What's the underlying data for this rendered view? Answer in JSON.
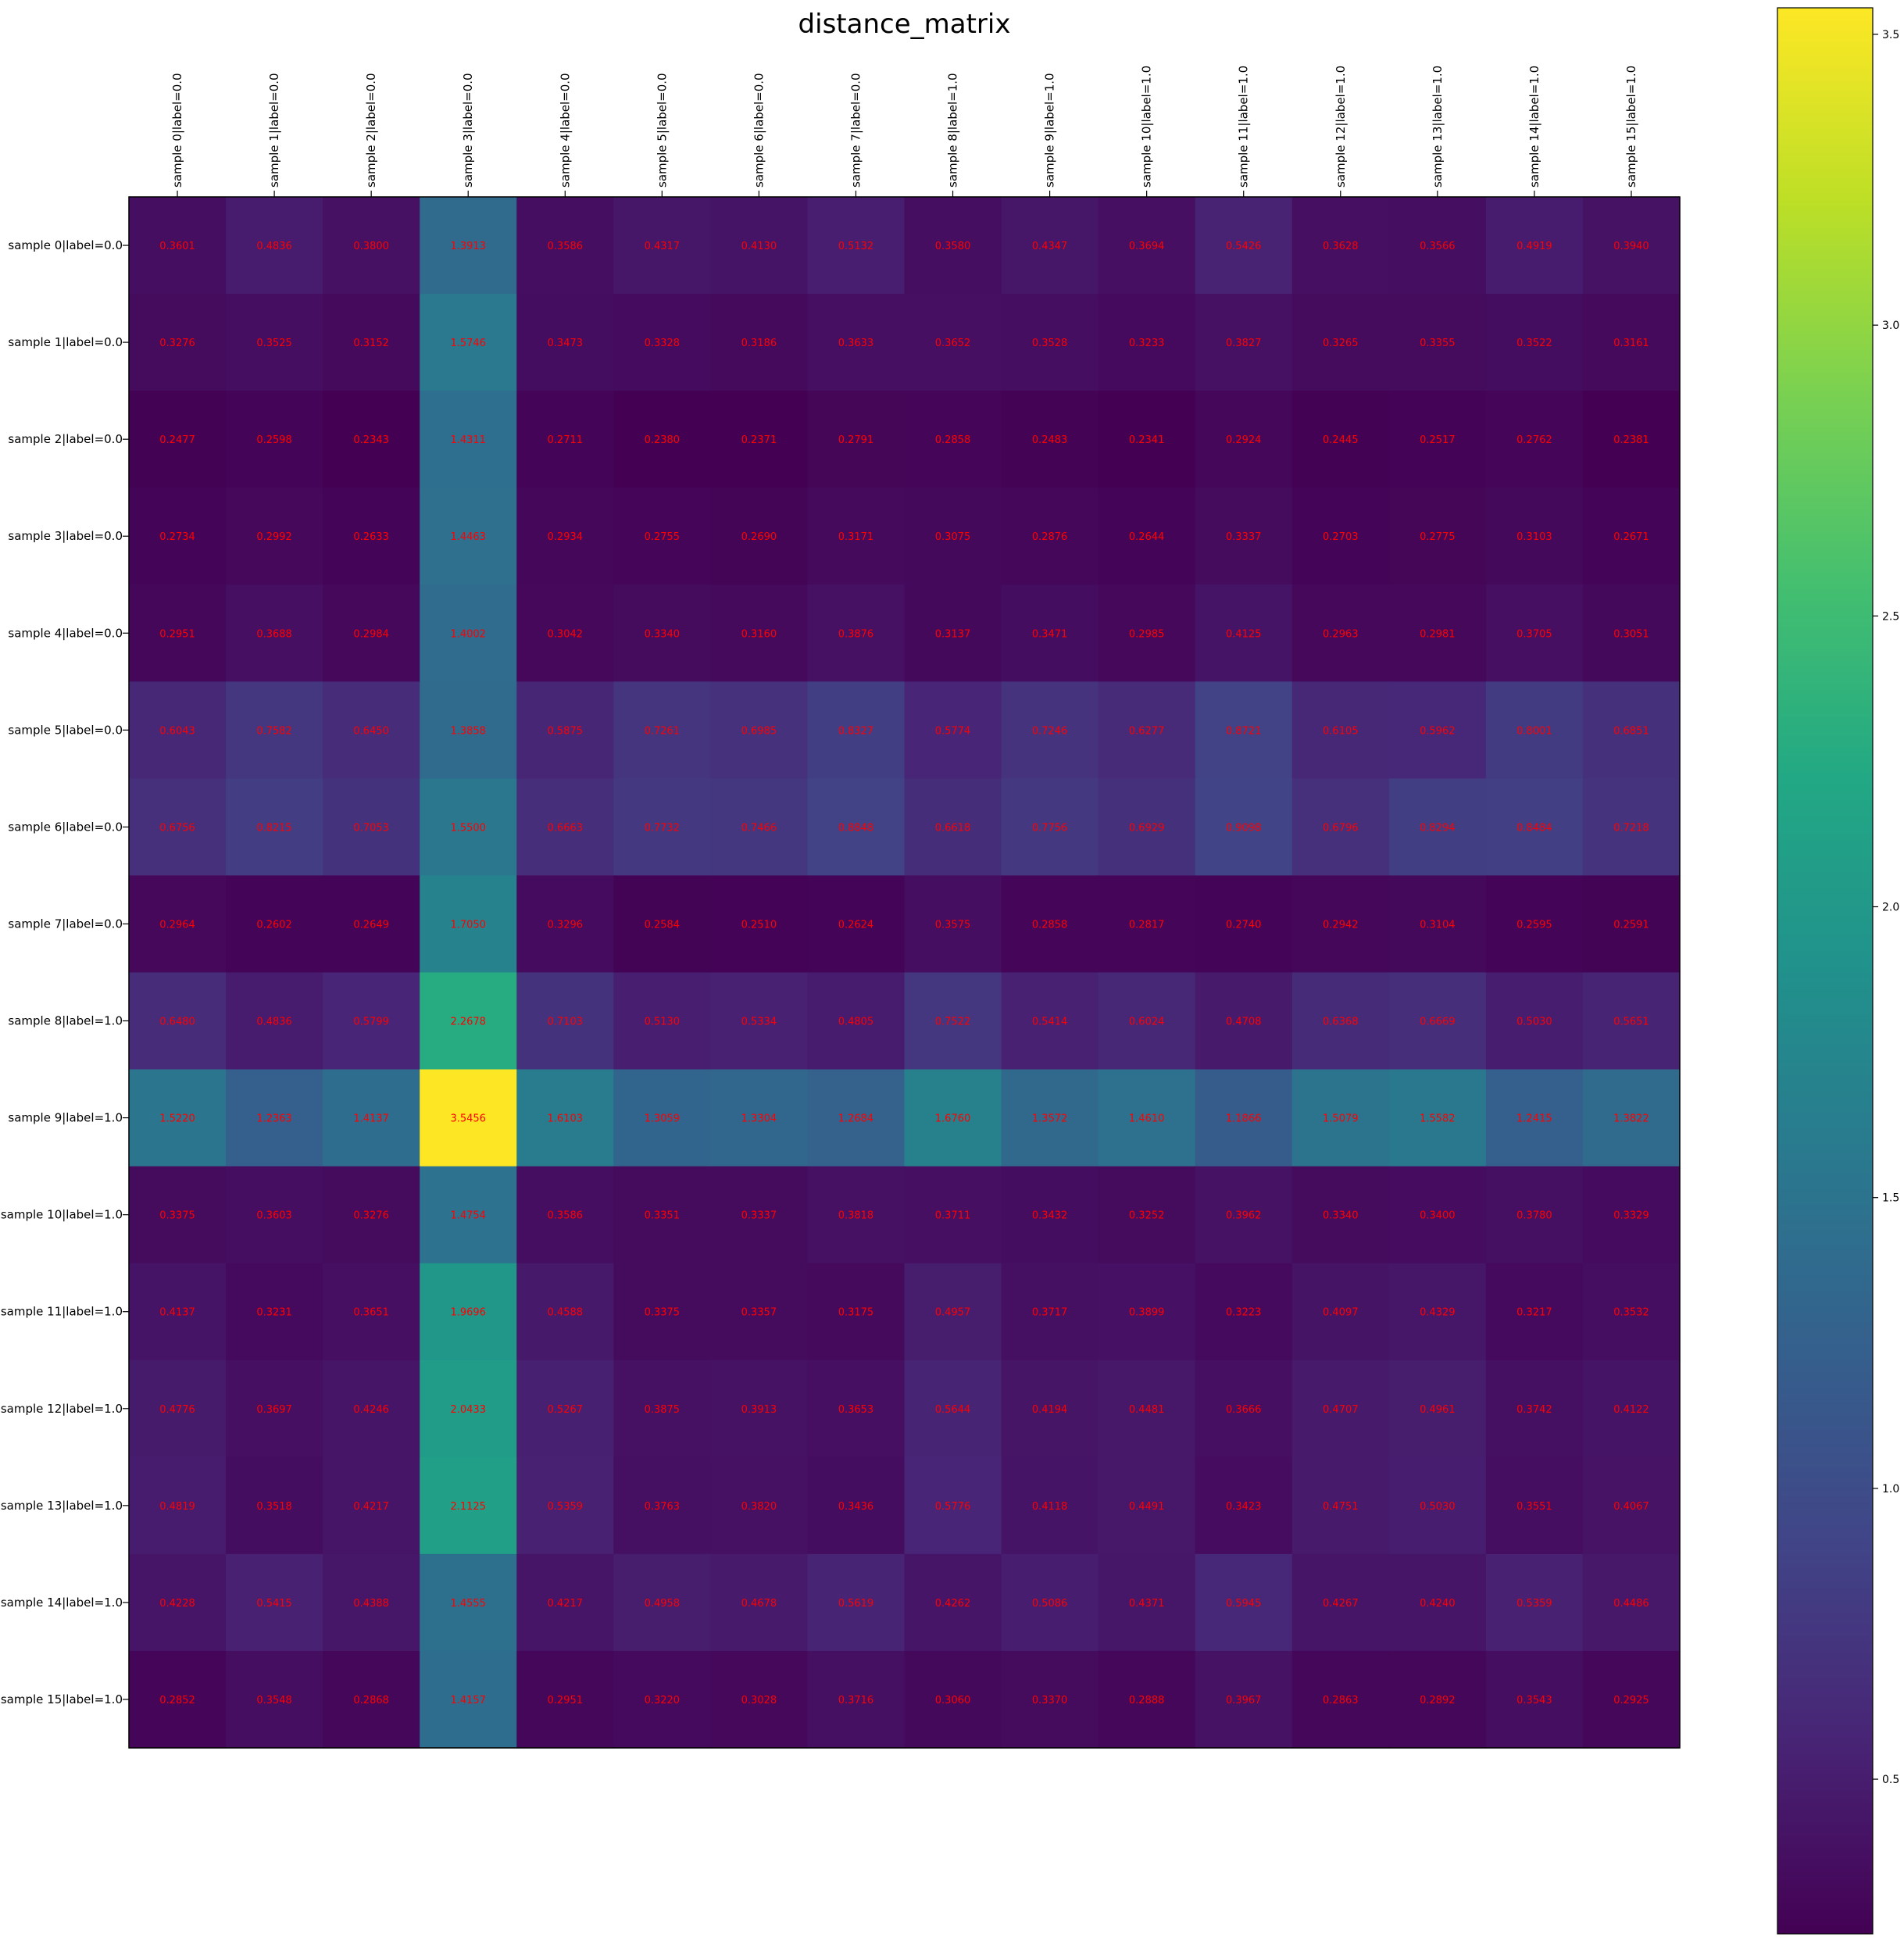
{
  "chart_data": {
    "type": "heatmap",
    "title": "distance_matrix",
    "colormap": "viridis",
    "annotation_color": "#ff0000",
    "x_labels": [
      "sample 0|label=0.0",
      "sample 1|label=0.0",
      "sample 2|label=0.0",
      "sample 3|label=0.0",
      "sample 4|label=0.0",
      "sample 5|label=0.0",
      "sample 6|label=0.0",
      "sample 7|label=0.0",
      "sample 8|label=1.0",
      "sample 9|label=1.0",
      "sample 10|label=1.0",
      "sample 11|label=1.0",
      "sample 12|label=1.0",
      "sample 13|label=1.0",
      "sample 14|label=1.0",
      "sample 15|label=1.0"
    ],
    "y_labels": [
      "sample 0|label=0.0",
      "sample 1|label=0.0",
      "sample 2|label=0.0",
      "sample 3|label=0.0",
      "sample 4|label=0.0",
      "sample 5|label=0.0",
      "sample 6|label=0.0",
      "sample 7|label=0.0",
      "sample 8|label=1.0",
      "sample 9|label=1.0",
      "sample 10|label=1.0",
      "sample 11|label=1.0",
      "sample 12|label=1.0",
      "sample 13|label=1.0",
      "sample 14|label=1.0",
      "sample 15|label=1.0"
    ],
    "x_axis_position": "top",
    "values": [
      [
        0.3601,
        0.4836,
        0.38,
        1.3913,
        0.3586,
        0.4317,
        0.413,
        0.5132,
        0.358,
        0.4347,
        0.3694,
        0.5426,
        0.3628,
        0.3566,
        0.4919,
        0.394
      ],
      [
        0.3276,
        0.3525,
        0.3152,
        1.5746,
        0.3473,
        0.3328,
        0.3186,
        0.3633,
        0.3652,
        0.3528,
        0.3233,
        0.3827,
        0.3265,
        0.3355,
        0.3522,
        0.3161
      ],
      [
        0.2477,
        0.2598,
        0.2343,
        1.4311,
        0.2711,
        0.238,
        0.2371,
        0.2791,
        0.2858,
        0.2483,
        0.2341,
        0.2924,
        0.2445,
        0.2517,
        0.2762,
        0.2381
      ],
      [
        0.2734,
        0.2992,
        0.2633,
        1.4463,
        0.2934,
        0.2755,
        0.269,
        0.3171,
        0.3075,
        0.2876,
        0.2644,
        0.3337,
        0.2703,
        0.2775,
        0.3103,
        0.2671
      ],
      [
        0.2951,
        0.3688,
        0.2984,
        1.4002,
        0.3042,
        0.334,
        0.316,
        0.3876,
        0.3137,
        0.3471,
        0.2985,
        0.4125,
        0.2963,
        0.2981,
        0.3705,
        0.3051
      ],
      [
        0.6043,
        0.7582,
        0.645,
        1.3858,
        0.5875,
        0.7261,
        0.6985,
        0.8327,
        0.5774,
        0.7246,
        0.6277,
        0.8721,
        0.6105,
        0.5962,
        0.8001,
        0.6851
      ],
      [
        0.6756,
        0.8215,
        0.7053,
        1.55,
        0.6663,
        0.7732,
        0.7466,
        0.8848,
        0.6618,
        0.7756,
        0.6929,
        0.9098,
        0.6796,
        0.8294,
        0.8484,
        0.7218
      ],
      [
        0.2964,
        0.2602,
        0.2649,
        1.705,
        0.3296,
        0.2584,
        0.251,
        0.2624,
        0.3575,
        0.2858,
        0.2817,
        0.274,
        0.2942,
        0.3104,
        0.2595,
        0.2591
      ],
      [
        0.648,
        0.4836,
        0.5799,
        2.2678,
        0.7103,
        0.513,
        0.5334,
        0.4805,
        0.7522,
        0.5414,
        0.6024,
        0.4708,
        0.6368,
        0.6669,
        0.503,
        0.5651
      ],
      [
        1.522,
        1.2363,
        1.4137,
        3.5456,
        1.6103,
        1.3059,
        1.3304,
        1.2684,
        1.676,
        1.3572,
        1.461,
        1.1866,
        1.5079,
        1.5582,
        1.2415,
        1.3822
      ],
      [
        0.3375,
        0.3603,
        0.3276,
        1.4754,
        0.3586,
        0.3351,
        0.3337,
        0.3818,
        0.3711,
        0.3432,
        0.3252,
        0.3962,
        0.334,
        0.34,
        0.378,
        0.3329
      ],
      [
        0.4137,
        0.3231,
        0.3651,
        1.9696,
        0.4588,
        0.3375,
        0.3357,
        0.3175,
        0.4957,
        0.3717,
        0.3899,
        0.3223,
        0.4097,
        0.4329,
        0.3217,
        0.3532
      ],
      [
        0.4776,
        0.3697,
        0.4246,
        2.0433,
        0.5267,
        0.3875,
        0.3913,
        0.3653,
        0.5644,
        0.4194,
        0.4481,
        0.3666,
        0.4707,
        0.4961,
        0.3742,
        0.4122
      ],
      [
        0.4819,
        0.3518,
        0.4217,
        2.1125,
        0.5359,
        0.3763,
        0.382,
        0.3436,
        0.5776,
        0.4118,
        0.4491,
        0.3423,
        0.4751,
        0.503,
        0.3551,
        0.4067
      ],
      [
        0.4228,
        0.5415,
        0.4388,
        1.4555,
        0.4217,
        0.4958,
        0.4678,
        0.5619,
        0.4262,
        0.5086,
        0.4371,
        0.5945,
        0.4267,
        0.424,
        0.5359,
        0.4486
      ],
      [
        0.2852,
        0.3548,
        0.2868,
        1.4157,
        0.2951,
        0.322,
        0.3028,
        0.3716,
        0.306,
        0.337,
        0.2888,
        0.3967,
        0.2863,
        0.2892,
        0.3543,
        0.2925
      ]
    ],
    "vmin": 0.2341,
    "vmax": 3.5456,
    "colorbar": {
      "ticks": [
        0.5,
        1.0,
        1.5,
        2.0,
        2.5,
        3.0,
        3.5
      ],
      "tick_labels": [
        "0.5",
        "1.0",
        "1.5",
        "2.0",
        "2.5",
        "3.0",
        "3.5"
      ]
    },
    "grid": false
  }
}
